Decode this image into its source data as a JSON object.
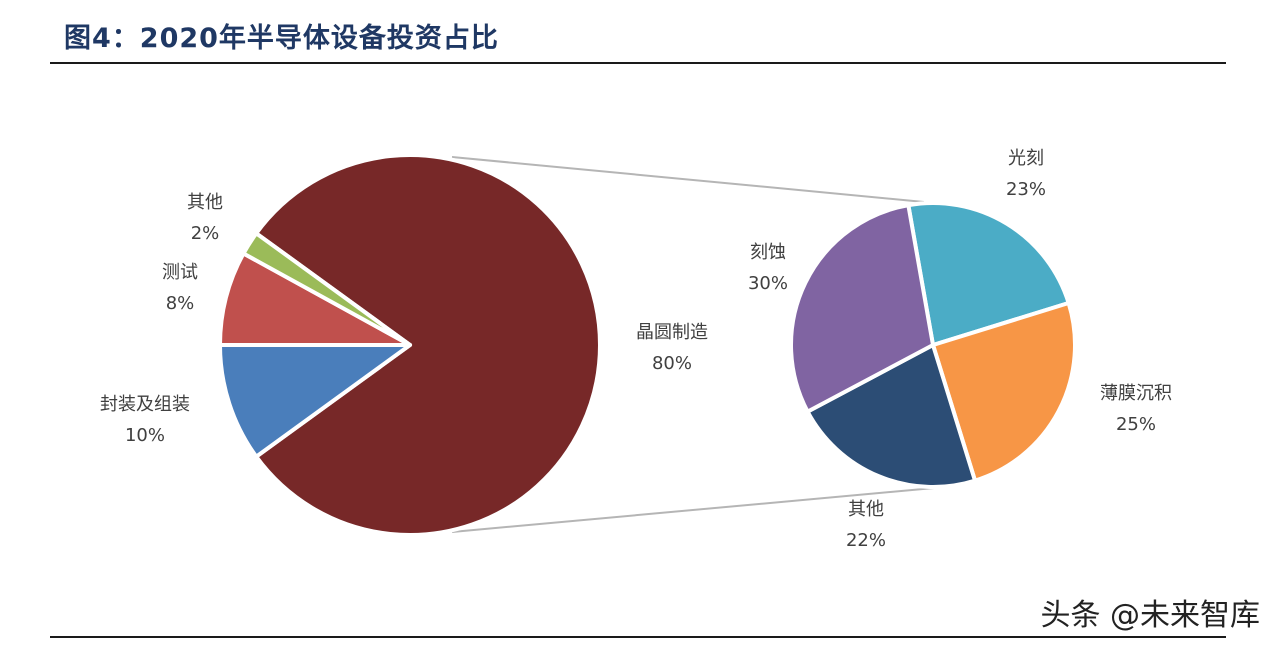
{
  "figure": {
    "title": "图4：2020年半导体设备投资占比"
  },
  "watermark": "头条 @未来智库",
  "chart_data": [
    {
      "type": "pie",
      "slices": [
        {
          "label": "晶圆制造",
          "value": 80,
          "value_label": "80%",
          "color": "#772828"
        },
        {
          "label": "封装及组装",
          "value": 10,
          "value_label": "10%",
          "color": "#4a7ebb"
        },
        {
          "label": "测试",
          "value": 8,
          "value_label": "8%",
          "color": "#c0504d"
        },
        {
          "label": "其他",
          "value": 2,
          "value_label": "2%",
          "color": "#9bbb59"
        }
      ]
    },
    {
      "type": "pie",
      "slices": [
        {
          "label": "光刻",
          "value": 23,
          "value_label": "23%",
          "color": "#4bacc6"
        },
        {
          "label": "薄膜沉积",
          "value": 25,
          "value_label": "25%",
          "color": "#f79646"
        },
        {
          "label": "其他",
          "value": 22,
          "value_label": "22%",
          "color": "#2c4d75"
        },
        {
          "label": "刻蚀",
          "value": 30,
          "value_label": "30%",
          "color": "#8064a2"
        }
      ]
    }
  ]
}
